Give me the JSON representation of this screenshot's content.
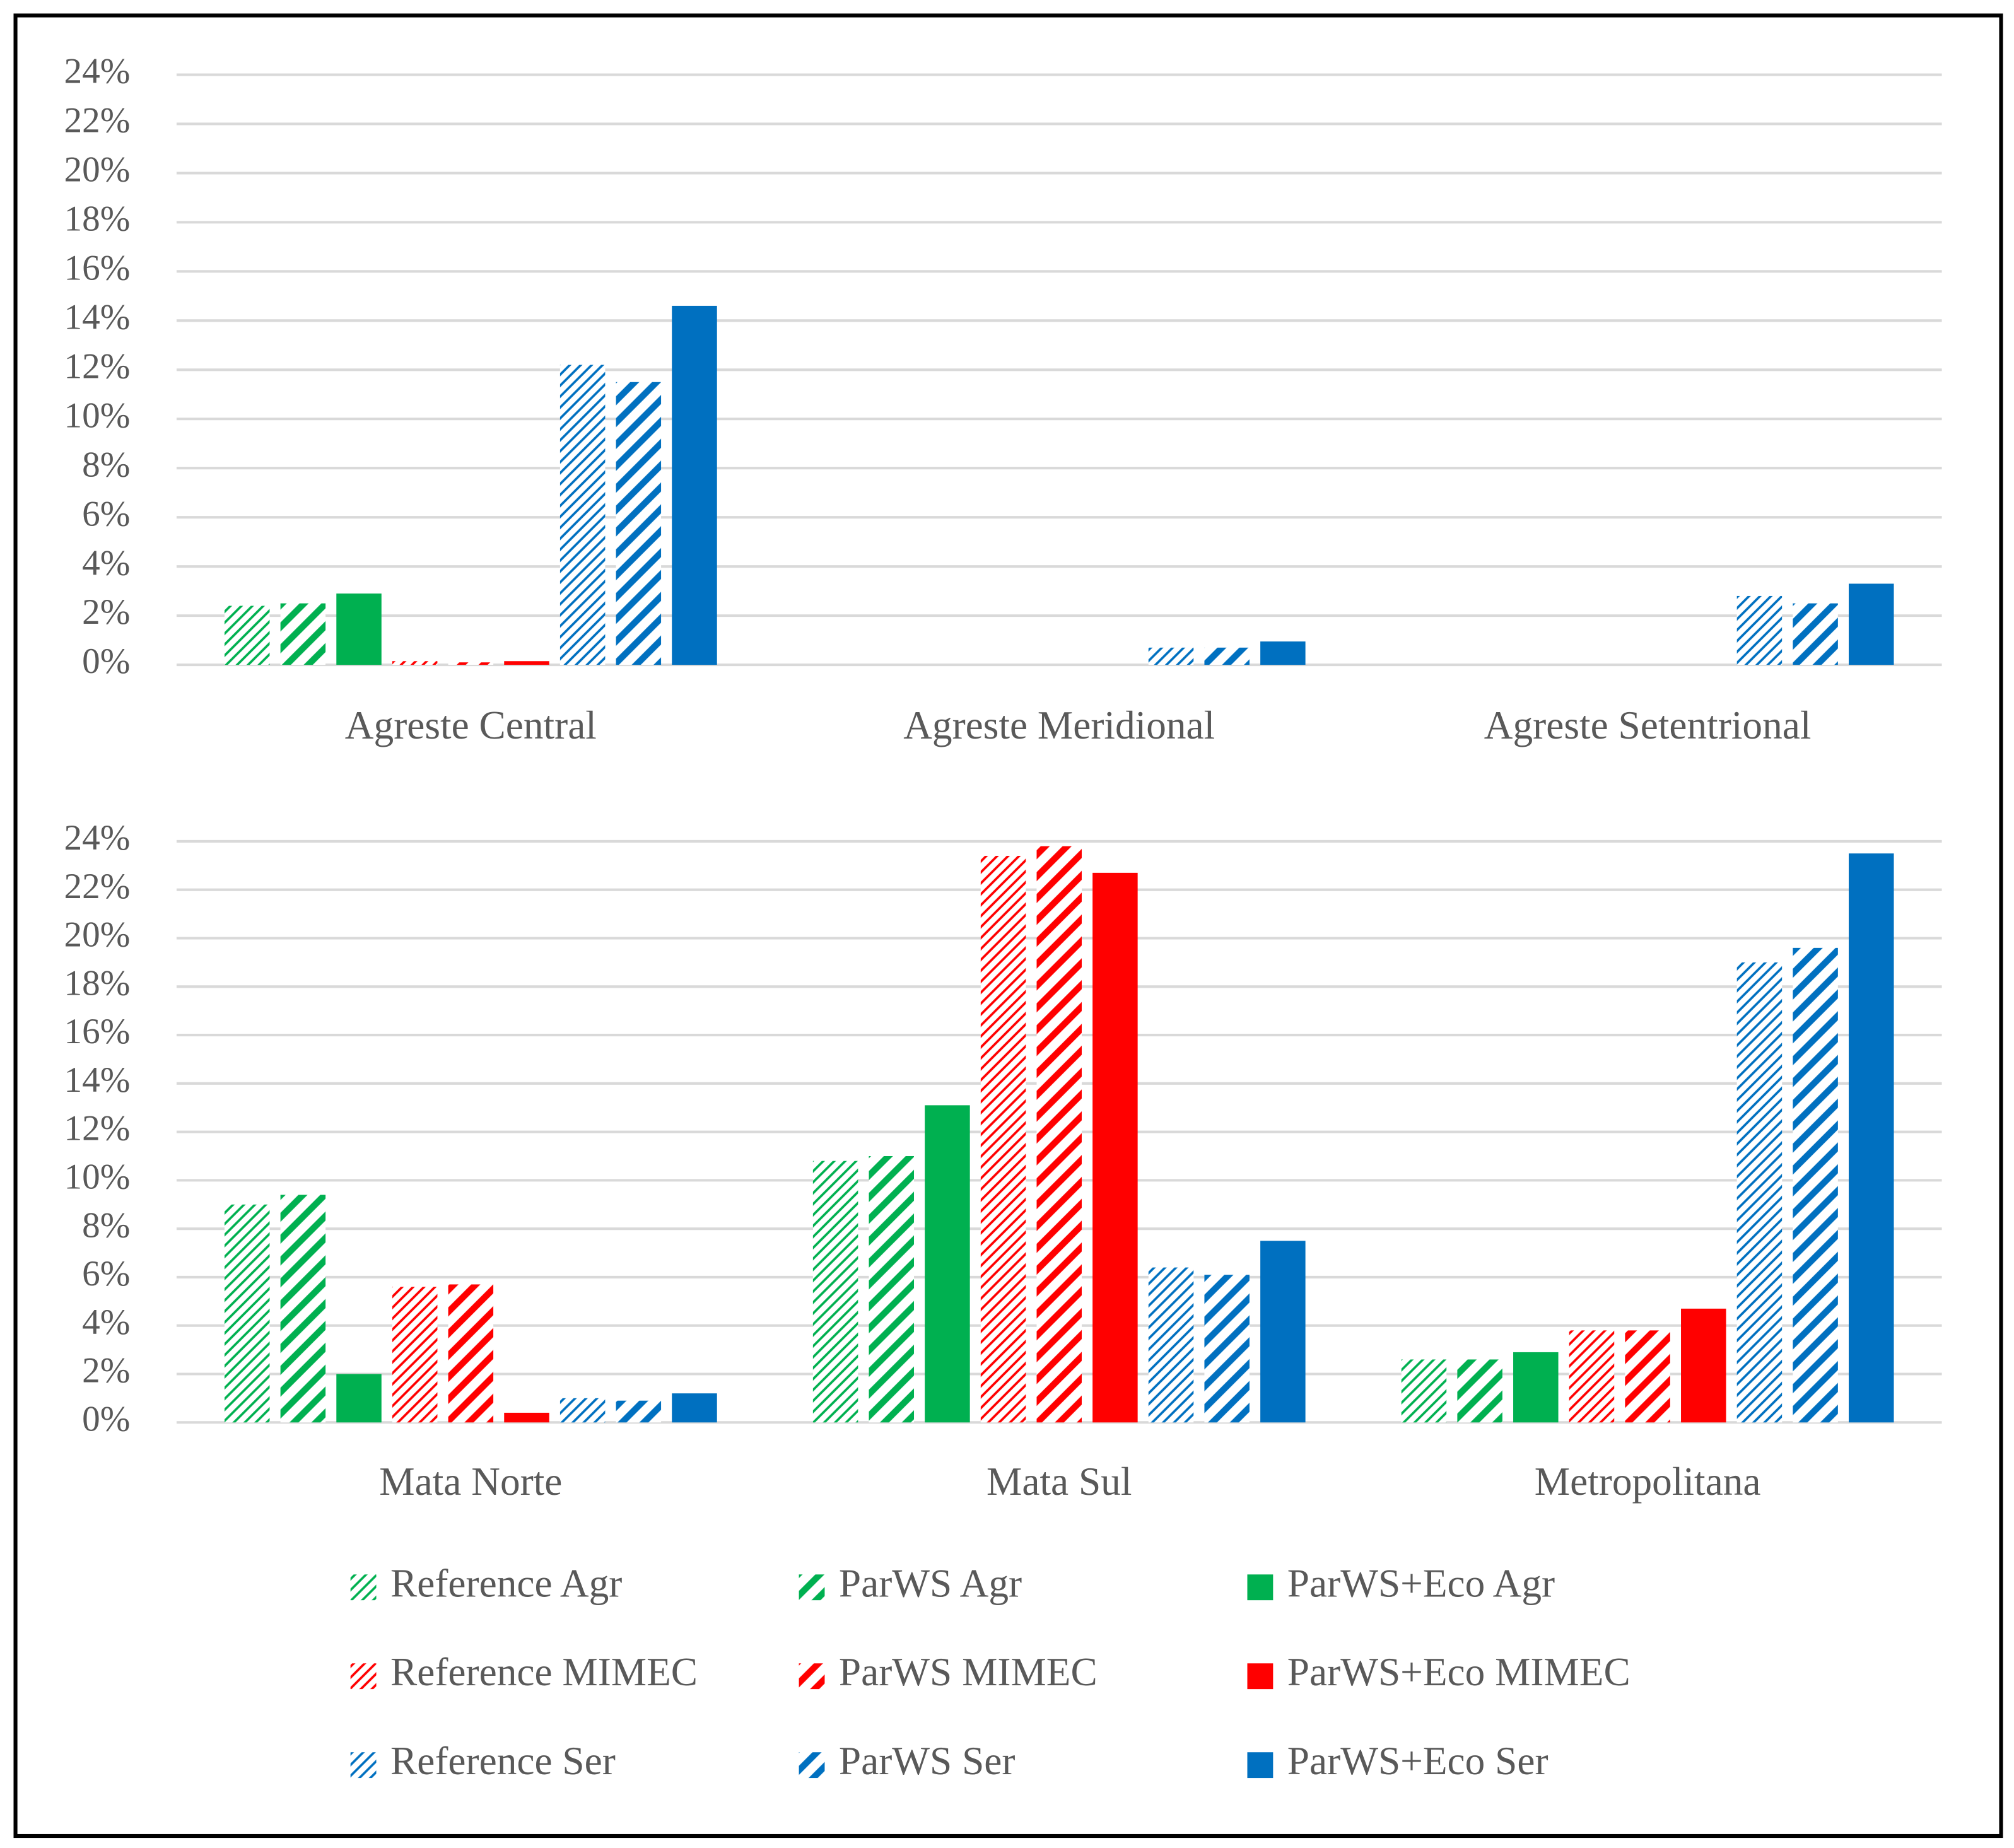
{
  "chart_data": [
    {
      "type": "bar",
      "categories": [
        "Agreste Central",
        "Agreste Meridional",
        "Agreste Setentrional"
      ],
      "series": [
        {
          "name": "Reference Agr",
          "color": "#00b050",
          "pattern": "fine-hatch",
          "values": [
            2.4,
            0,
            0
          ]
        },
        {
          "name": "ParWS Agr",
          "color": "#00b050",
          "pattern": "wide-hatch",
          "values": [
            2.5,
            0,
            0
          ]
        },
        {
          "name": "ParWS+Eco Agr",
          "color": "#00b050",
          "pattern": "solid",
          "values": [
            2.9,
            0,
            0
          ]
        },
        {
          "name": "Reference MIMEC",
          "color": "#ff0000",
          "pattern": "fine-hatch",
          "values": [
            0.15,
            0,
            0
          ]
        },
        {
          "name": "ParWS MIMEC",
          "color": "#ff0000",
          "pattern": "wide-hatch",
          "values": [
            0.1,
            0,
            0
          ]
        },
        {
          "name": "ParWS+Eco MIMEC",
          "color": "#ff0000",
          "pattern": "solid",
          "values": [
            0.15,
            0,
            0
          ]
        },
        {
          "name": "Reference Ser",
          "color": "#0070c0",
          "pattern": "fine-hatch",
          "values": [
            12.2,
            0.7,
            2.8
          ]
        },
        {
          "name": "ParWS Ser",
          "color": "#0070c0",
          "pattern": "wide-hatch",
          "values": [
            11.5,
            0.7,
            2.5
          ]
        },
        {
          "name": "ParWS+Eco Ser",
          "color": "#0070c0",
          "pattern": "solid",
          "values": [
            14.6,
            0.95,
            3.3
          ]
        }
      ],
      "ylim": [
        0,
        24
      ],
      "yticks": [
        {
          "value": 0,
          "label": "0%"
        },
        {
          "value": 2,
          "label": "2%"
        },
        {
          "value": 4,
          "label": "4%"
        },
        {
          "value": 6,
          "label": "6%"
        },
        {
          "value": 8,
          "label": "8%"
        },
        {
          "value": 10,
          "label": "10%"
        },
        {
          "value": 12,
          "label": "12%"
        },
        {
          "value": 14,
          "label": "14%"
        },
        {
          "value": 16,
          "label": "16%"
        },
        {
          "value": 18,
          "label": "18%"
        },
        {
          "value": 20,
          "label": "20%"
        },
        {
          "value": 22,
          "label": "22%"
        },
        {
          "value": 24,
          "label": "24%"
        }
      ],
      "grid": true
    },
    {
      "type": "bar",
      "categories": [
        "Mata Norte",
        "Mata Sul",
        "Metropolitana"
      ],
      "series": [
        {
          "color": "#00b050",
          "pattern": "fine-hatch",
          "values": [
            9.0,
            10.8,
            2.6
          ]
        },
        {
          "color": "#00b050",
          "pattern": "wide-hatch",
          "values": [
            9.4,
            11.0,
            2.6
          ]
        },
        {
          "color": "#00b050",
          "pattern": "solid",
          "values": [
            2.0,
            13.1,
            2.9
          ]
        },
        {
          "color": "#ff0000",
          "pattern": "fine-hatch",
          "values": [
            5.6,
            23.4,
            3.8
          ]
        },
        {
          "color": "#ff0000",
          "pattern": "wide-hatch",
          "values": [
            5.7,
            23.8,
            3.8
          ]
        },
        {
          "color": "#ff0000",
          "pattern": "solid",
          "values": [
            0.4,
            22.7,
            4.7
          ]
        },
        {
          "color": "#0070c0",
          "pattern": "fine-hatch",
          "values": [
            1.0,
            6.4,
            19.0
          ]
        },
        {
          "color": "#0070c0",
          "pattern": "wide-hatch",
          "values": [
            0.9,
            6.1,
            19.6
          ]
        },
        {
          "color": "#0070c0",
          "pattern": "solid",
          "values": [
            1.2,
            7.5,
            23.5
          ]
        }
      ],
      "ylim": [
        0,
        24
      ],
      "yticks": [
        {
          "value": 0,
          "label": "0%"
        },
        {
          "value": 2,
          "label": "2%"
        },
        {
          "value": 4,
          "label": "4%"
        },
        {
          "value": 6,
          "label": "6%"
        },
        {
          "value": 8,
          "label": "8%"
        },
        {
          "value": 10,
          "label": "10%"
        },
        {
          "value": 12,
          "label": "12%"
        },
        {
          "value": 14,
          "label": "14%"
        },
        {
          "value": 16,
          "label": "16%"
        },
        {
          "value": 18,
          "label": "18%"
        },
        {
          "value": 20,
          "label": "20%"
        },
        {
          "value": 22,
          "label": "22%"
        },
        {
          "value": 24,
          "label": "24%"
        }
      ],
      "grid": true
    }
  ]
}
